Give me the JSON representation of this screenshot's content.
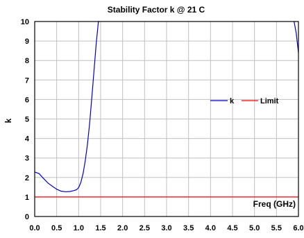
{
  "chart_data": {
    "type": "line",
    "title": "Stability Factor k @ 21 C",
    "xlabel": "Freq (GHz)",
    "ylabel": "k",
    "xlim": [
      0,
      6
    ],
    "ylim": [
      0,
      10
    ],
    "xticks": [
      "0.0",
      "0.5",
      "1.0",
      "1.5",
      "2.0",
      "2.5",
      "3.0",
      "3.5",
      "4.0",
      "4.5",
      "5.0",
      "5.5",
      "6.0"
    ],
    "yticks": [
      "0",
      "1",
      "2",
      "3",
      "4",
      "5",
      "6",
      "7",
      "8",
      "9",
      "10"
    ],
    "grid": true,
    "legend_position": "right",
    "series": [
      {
        "name": "k",
        "color": "#0000cc",
        "x": [
          0.0,
          0.1,
          0.2,
          0.3,
          0.4,
          0.5,
          0.6,
          0.7,
          0.8,
          0.9,
          0.95,
          1.0,
          1.05,
          1.1,
          1.15,
          1.2,
          1.25,
          1.3,
          1.35,
          1.4,
          1.45,
          1.47
        ],
        "y": [
          2.28,
          2.2,
          1.95,
          1.72,
          1.55,
          1.4,
          1.3,
          1.27,
          1.28,
          1.33,
          1.37,
          1.48,
          1.75,
          2.2,
          2.85,
          3.7,
          4.8,
          6.1,
          7.5,
          8.9,
          10.0,
          10.0
        ]
      },
      {
        "name": "k",
        "color": "#0000cc",
        "x": [
          5.9,
          5.95,
          6.0
        ],
        "y": [
          10.0,
          9.4,
          8.4
        ]
      },
      {
        "name": "Limit",
        "color": "#ff0000",
        "x": [
          0.0,
          6.0
        ],
        "y": [
          1.0,
          1.0
        ]
      }
    ]
  }
}
